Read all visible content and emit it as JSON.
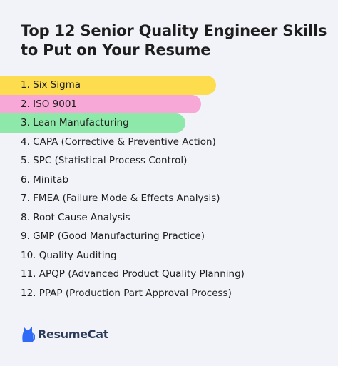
{
  "title": "Top 12 Senior Quality Engineer Skills to Put on Your Resume",
  "skills": [
    {
      "label": "1. Six Sigma",
      "highlight": "#fddd4e"
    },
    {
      "label": "2. ISO 9001",
      "highlight": "#f7a8d6"
    },
    {
      "label": "3. Lean Manufacturing",
      "highlight": "#8ee8a9"
    },
    {
      "label": "4. CAPA (Corrective & Preventive Action)"
    },
    {
      "label": "5. SPC (Statistical Process Control)"
    },
    {
      "label": "6. Minitab"
    },
    {
      "label": "7. FMEA (Failure Mode & Effects Analysis)"
    },
    {
      "label": "8. Root Cause Analysis"
    },
    {
      "label": "9. GMP (Good Manufacturing Practice)"
    },
    {
      "label": "10. Quality Auditing"
    },
    {
      "label": "11. APQP (Advanced Product Quality Planning)"
    },
    {
      "label": "12. PPAP (Production Part Approval Process)"
    }
  ],
  "brand": {
    "name": "ResumeCat",
    "icon": "cat-logo-icon",
    "color": "#2f6bf6"
  }
}
